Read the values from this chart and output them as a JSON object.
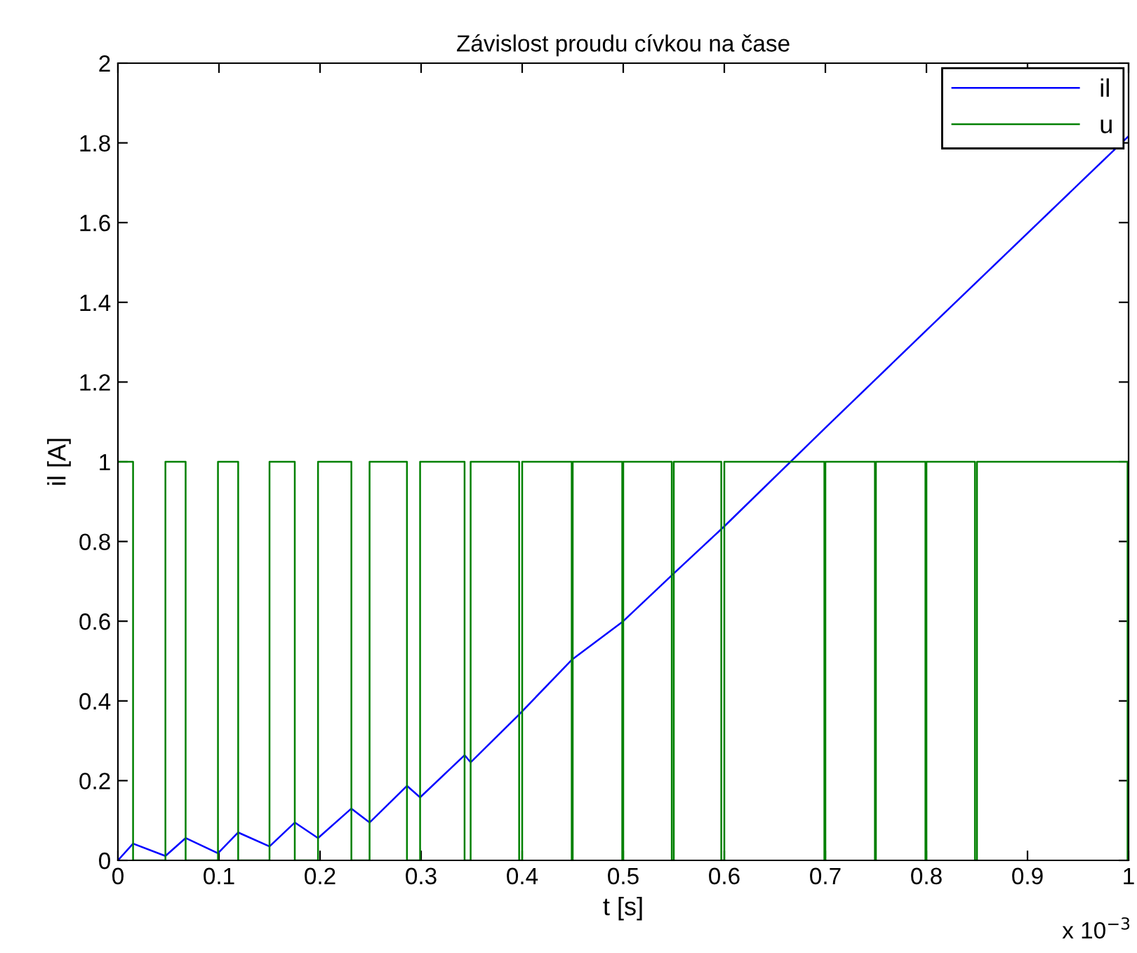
{
  "chart_data": {
    "type": "line",
    "title": "Závislost proudu cívkou na čase",
    "xlabel": "t [s]",
    "ylabel": "il [A]",
    "annotations": [
      "x 10$^{−3}$"
    ],
    "xlim": [
      0,
      1
    ],
    "xticks": [
      0,
      0.1,
      0.2,
      0.3,
      0.4,
      0.5,
      0.6,
      0.7,
      0.8,
      0.9,
      1
    ],
    "ylim": [
      0,
      2
    ],
    "yticks": [
      0,
      0.2,
      0.4,
      0.6,
      0.8,
      1,
      1.2,
      1.4,
      1.6,
      1.8,
      2
    ],
    "grid": false,
    "legend": "top right",
    "marker": "none",
    "line_style": "solid",
    "series": [
      {
        "name": "il",
        "color": "#0000ff",
        "x": [
          0,
          0.015,
          0.047,
          0.067,
          0.099,
          0.119,
          0.15,
          0.175,
          0.198,
          0.231,
          0.249,
          0.286,
          0.299,
          0.343,
          0.349,
          0.397,
          0.449,
          0.5,
          0.55,
          0.6,
          0.7,
          0.8,
          1
        ],
        "values": [
          0,
          0.042,
          0.011,
          0.056,
          0.018,
          0.07,
          0.035,
          0.095,
          0.056,
          0.13,
          0.095,
          0.187,
          0.158,
          0.264,
          0.246,
          0.366,
          0.503,
          0.6,
          0.72,
          0.838,
          1.085,
          1.33,
          1.817
        ]
      },
      {
        "name": "u",
        "color": "#008000",
        "x": [
          0,
          0.015,
          0.015,
          0.047,
          0.047,
          0.067,
          0.067,
          0.099,
          0.099,
          0.119,
          0.119,
          0.15,
          0.15,
          0.175,
          0.175,
          0.198,
          0.198,
          0.231,
          0.231,
          0.249,
          0.249,
          0.286,
          0.286,
          0.299,
          0.299,
          0.343,
          0.343,
          0.349,
          0.349,
          0.397,
          0.397,
          0.4,
          0.4,
          0.449,
          0.449,
          0.45,
          0.45,
          0.499,
          0.499,
          0.5,
          0.5,
          0.548,
          0.548,
          0.55,
          0.55,
          0.597,
          0.597,
          0.6,
          0.6,
          0.699,
          0.699,
          0.7,
          0.7,
          0.749,
          0.749,
          0.75,
          0.75,
          0.799,
          0.799,
          0.8,
          0.8,
          0.848,
          0.848,
          0.85,
          0.85,
          0.999,
          0.999,
          1
        ],
        "values": [
          1,
          1,
          0,
          0,
          1,
          1,
          0,
          0,
          1,
          1,
          0,
          0,
          1,
          1,
          0,
          0,
          1,
          1,
          0,
          0,
          1,
          1,
          0,
          0,
          1,
          1,
          0,
          0,
          1,
          1,
          0,
          0,
          1,
          1,
          0,
          0,
          1,
          1,
          0,
          0,
          1,
          1,
          0,
          0,
          1,
          1,
          0,
          0,
          1,
          1,
          0,
          0,
          1,
          1,
          0,
          0,
          1,
          1,
          0,
          0,
          1,
          1,
          0,
          0,
          1,
          1,
          0,
          0
        ]
      }
    ]
  }
}
